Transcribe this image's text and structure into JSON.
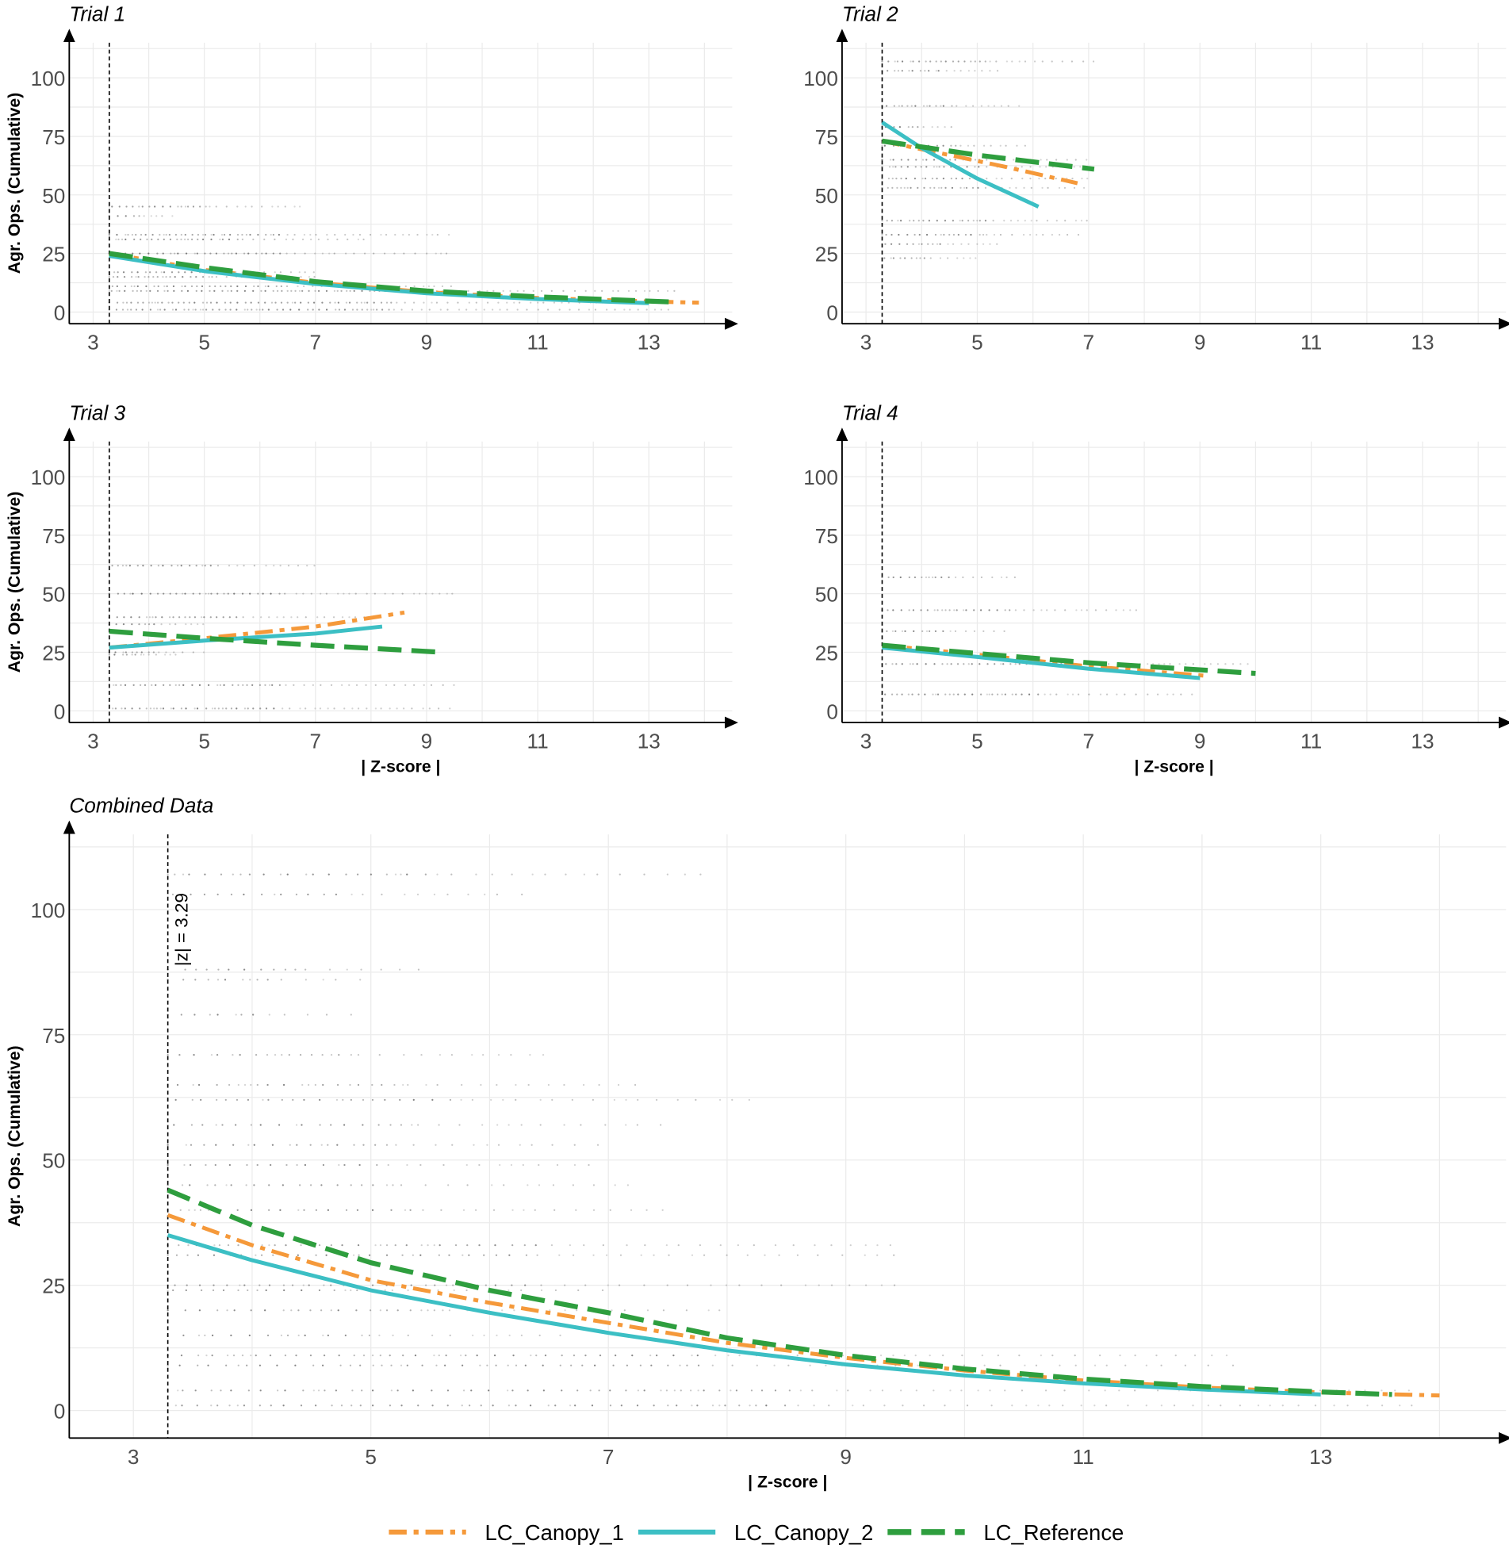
{
  "chart_data": {
    "type": "line",
    "threshold": {
      "value": 3.29,
      "label": "|z| = 3.29"
    },
    "series_styles": [
      {
        "name": "LC_Canopy_1",
        "color": "#F5993A",
        "dash": "dot-dash"
      },
      {
        "name": "LC_Canopy_2",
        "color": "#3CBFC4",
        "dash": "solid"
      },
      {
        "name": "LC_Reference",
        "color": "#2E9E3E",
        "dash": "long-dash"
      }
    ],
    "legend": {
      "placement": "bottom",
      "items": [
        "LC_Canopy_1",
        "LC_Canopy_2",
        "LC_Reference"
      ]
    },
    "panels": [
      {
        "title": "Trial 1",
        "xlabel": "",
        "ylabel": "Agr. Ops. (Cumulative)",
        "xlim": [
          2.57,
          14.5
        ],
        "ylim": [
          -5,
          115
        ],
        "xticks": [
          3,
          5,
          7,
          9,
          11,
          13
        ],
        "yticks": [
          0,
          25,
          50,
          75,
          100
        ],
        "point_rows": [
          [
            45,
            6.8
          ],
          [
            41,
            4.5
          ],
          [
            33,
            9.5
          ],
          [
            31,
            8
          ],
          [
            25,
            9.5
          ],
          [
            17,
            7
          ],
          [
            15,
            7
          ],
          [
            11,
            9.5
          ],
          [
            9,
            13.5
          ],
          [
            4,
            13.5
          ],
          [
            1,
            13.5
          ]
        ],
        "series": [
          {
            "name": "LC_Canopy_1",
            "x": [
              3.29,
              5,
              7,
              9,
              11,
              13,
              13.9
            ],
            "y": [
              25,
              18,
              12.5,
              8.5,
              6,
              4.5,
              4
            ]
          },
          {
            "name": "LC_Canopy_2",
            "x": [
              3.29,
              5,
              7,
              9,
              11,
              13
            ],
            "y": [
              24,
              17.5,
              12,
              8,
              5.5,
              3.8
            ]
          },
          {
            "name": "LC_Reference",
            "x": [
              3.29,
              5,
              7,
              9,
              11,
              13.5
            ],
            "y": [
              25,
              19,
              13,
              9,
              6.5,
              4.2
            ]
          }
        ]
      },
      {
        "title": "Trial 2",
        "xlabel": "",
        "ylabel": "",
        "xlim": [
          2.57,
          14.5
        ],
        "ylim": [
          -5,
          115
        ],
        "xticks": [
          3,
          5,
          7,
          9,
          11,
          13
        ],
        "yticks": [
          0,
          25,
          50,
          75,
          100
        ],
        "point_rows": [
          [
            107,
            7.1
          ],
          [
            103,
            5.5
          ],
          [
            88,
            5.8
          ],
          [
            79,
            4.7
          ],
          [
            71,
            6
          ],
          [
            65,
            7
          ],
          [
            62,
            7
          ],
          [
            57,
            7
          ],
          [
            53,
            7
          ],
          [
            39,
            7.1
          ],
          [
            33,
            7
          ],
          [
            29,
            5.5
          ],
          [
            23,
            5
          ]
        ],
        "series": [
          {
            "name": "LC_Canopy_1",
            "x": [
              3.29,
              4.5,
              5.5,
              6.8
            ],
            "y": [
              73,
              67,
              62,
              55
            ]
          },
          {
            "name": "LC_Canopy_2",
            "x": [
              3.29,
              4,
              5,
              6.1
            ],
            "y": [
              81,
              70,
              57,
              45
            ]
          },
          {
            "name": "LC_Reference",
            "x": [
              3.29,
              5,
              7.1
            ],
            "y": [
              73,
              67,
              61
            ]
          }
        ]
      },
      {
        "title": "Trial 3",
        "xlabel": "| Z-score |",
        "ylabel": "Agr. Ops. (Cumulative)",
        "xlim": [
          2.57,
          14.5
        ],
        "ylim": [
          -5,
          115
        ],
        "xticks": [
          3,
          5,
          7,
          9,
          11,
          13
        ],
        "yticks": [
          0,
          25,
          50,
          75,
          100
        ],
        "point_rows": [
          [
            62,
            7
          ],
          [
            50,
            9.5
          ],
          [
            40,
            8
          ],
          [
            37,
            5
          ],
          [
            25,
            5
          ],
          [
            24,
            4.5
          ],
          [
            11,
            9.5
          ],
          [
            1,
            9.5
          ]
        ],
        "series": [
          {
            "name": "LC_Canopy_1",
            "x": [
              3.29,
              5,
              7,
              8.6
            ],
            "y": [
              27,
              31,
              36,
              42
            ]
          },
          {
            "name": "LC_Canopy_2",
            "x": [
              3.29,
              5,
              7,
              8.2
            ],
            "y": [
              27,
              30,
              33,
              36
            ]
          },
          {
            "name": "LC_Reference",
            "x": [
              3.29,
              5,
              7,
              9.3
            ],
            "y": [
              34,
              31,
              28,
              25
            ]
          }
        ]
      },
      {
        "title": "Trial 4",
        "xlabel": "| Z-score |",
        "ylabel": "",
        "xlim": [
          2.57,
          14.5
        ],
        "ylim": [
          -5,
          115
        ],
        "xticks": [
          3,
          5,
          7,
          9,
          11,
          13
        ],
        "yticks": [
          0,
          25,
          50,
          75,
          100
        ],
        "point_rows": [
          [
            57,
            5.7
          ],
          [
            43,
            7.9
          ],
          [
            34,
            5.5
          ],
          [
            20,
            9.9
          ],
          [
            7,
            8.9
          ]
        ],
        "series": [
          {
            "name": "LC_Canopy_1",
            "x": [
              3.29,
              5,
              7,
              9.1
            ],
            "y": [
              28,
              24,
              19,
              15
            ]
          },
          {
            "name": "LC_Canopy_2",
            "x": [
              3.29,
              5,
              7,
              9
            ],
            "y": [
              27,
              23,
              18,
              14
            ]
          },
          {
            "name": "LC_Reference",
            "x": [
              3.29,
              5,
              7,
              10
            ],
            "y": [
              28,
              24.5,
              20.5,
              16
            ]
          }
        ]
      },
      {
        "title": "Combined Data",
        "xlabel": "| Z-score |",
        "ylabel": "Agr. Ops. (Cumulative)",
        "xlim": [
          2.46,
          14.56
        ],
        "ylim": [
          -5.5,
          115
        ],
        "xticks": [
          3,
          5,
          7,
          9,
          11,
          13
        ],
        "yticks": [
          0,
          25,
          50,
          75,
          100
        ],
        "point_rows": [
          [
            107,
            7.8
          ],
          [
            103,
            6.3
          ],
          [
            88,
            5.5
          ],
          [
            86,
            5.0
          ],
          [
            79,
            4.9
          ],
          [
            71,
            6.5
          ],
          [
            65,
            7.3
          ],
          [
            62,
            8.2
          ],
          [
            57,
            7.5
          ],
          [
            53,
            7
          ],
          [
            49,
            7
          ],
          [
            45,
            7.2
          ],
          [
            40,
            7.5
          ],
          [
            33,
            9.5
          ],
          [
            31,
            9.5
          ],
          [
            25,
            9.5
          ],
          [
            24,
            7
          ],
          [
            20,
            8
          ],
          [
            15,
            6.7
          ],
          [
            11,
            12.3
          ],
          [
            9,
            12.3
          ],
          [
            4,
            13.8
          ],
          [
            1,
            13.8
          ]
        ],
        "series": [
          {
            "name": "LC_Canopy_1",
            "x": [
              3.29,
              4,
              5,
              6,
              7,
              8,
              9,
              10,
              11,
              12,
              13,
              14
            ],
            "y": [
              39,
              33,
              26,
              21.5,
              17.5,
              13.5,
              10.5,
              8,
              6,
              4.6,
              3.6,
              3
            ]
          },
          {
            "name": "LC_Canopy_2",
            "x": [
              3.29,
              4,
              5,
              6,
              7,
              8,
              9,
              10,
              11,
              12,
              13
            ],
            "y": [
              35,
              30,
              24,
              19.5,
              15.5,
              12,
              9.2,
              7,
              5.4,
              4.2,
              3.2
            ]
          },
          {
            "name": "LC_Reference",
            "x": [
              3.29,
              4,
              5,
              6,
              7,
              8,
              9,
              10,
              11,
              12,
              13,
              13.6
            ],
            "y": [
              44,
              37,
              29.5,
              24,
              19.5,
              14.5,
              11,
              8.3,
              6.3,
              4.8,
              3.7,
              3.2
            ]
          }
        ]
      }
    ]
  }
}
